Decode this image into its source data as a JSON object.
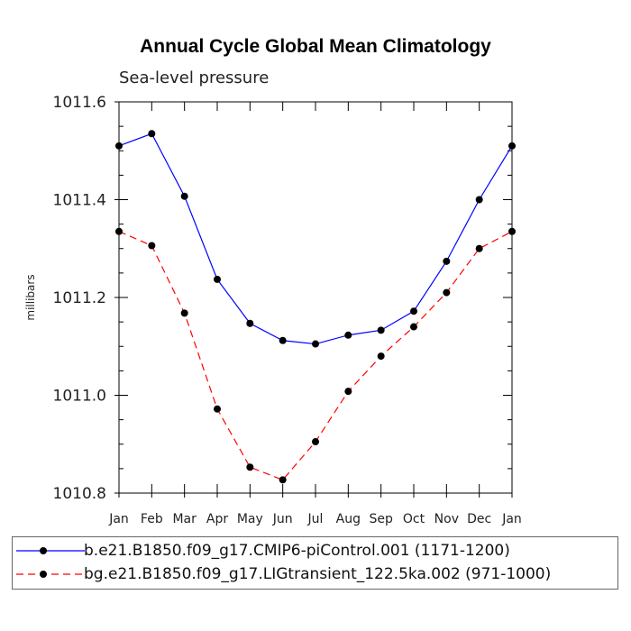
{
  "chart_data": {
    "type": "line",
    "title": "Annual Cycle Global Mean Climatology",
    "subtitle": "Sea-level pressure",
    "ylabel": "millibars",
    "xlabel": "",
    "categories": [
      "Jan",
      "Feb",
      "Mar",
      "Apr",
      "May",
      "Jun",
      "Jul",
      "Aug",
      "Sep",
      "Oct",
      "Nov",
      "Dec",
      "Jan"
    ],
    "ylim": [
      1010.8,
      1011.6
    ],
    "yticks": [
      1010.8,
      1011.0,
      1011.2,
      1011.4,
      1011.6
    ],
    "ytick_labels": [
      "1010.8",
      "1011.0",
      "1011.2",
      "1011.4",
      "1011.6"
    ],
    "series": [
      {
        "name": "b.e21.B1850.f09_g17.CMIP6-piControl.001 (1171-1200)",
        "color": "#0000ff",
        "dash": "solid",
        "values": [
          1011.51,
          1011.535,
          1011.407,
          1011.237,
          1011.147,
          1011.112,
          1011.105,
          1011.123,
          1011.133,
          1011.172,
          1011.274,
          1011.4,
          1011.51
        ]
      },
      {
        "name": "bg.e21.B1850.f09_g17.LIGtransient_122.5ka.002 (971-1000)",
        "color": "#ff0000",
        "dash": "dashed",
        "values": [
          1011.335,
          1011.306,
          1011.168,
          1010.972,
          1010.853,
          1010.827,
          1010.905,
          1011.008,
          1011.08,
          1011.14,
          1011.21,
          1011.3,
          1011.335
        ]
      }
    ],
    "grid": false,
    "legend_position": "bottom"
  }
}
